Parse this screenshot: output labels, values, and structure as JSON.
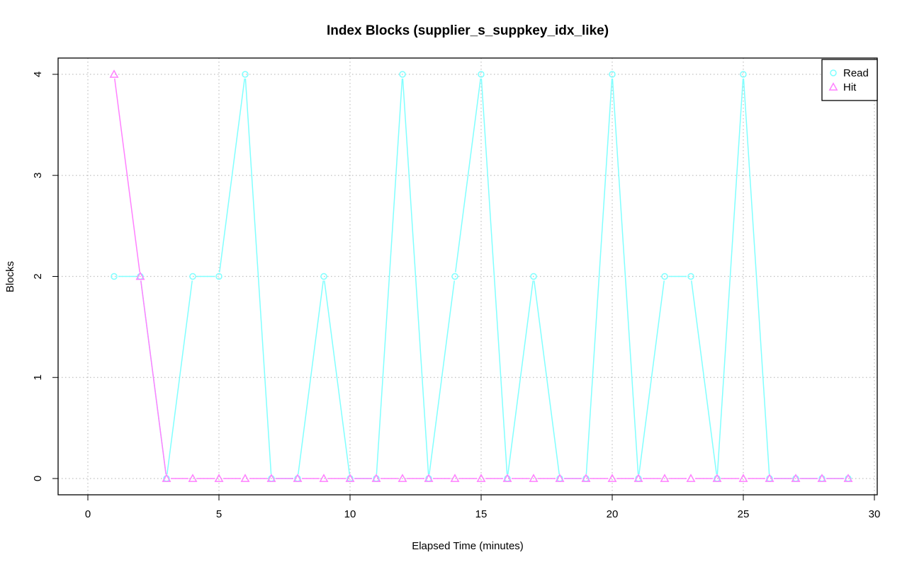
{
  "chart_data": {
    "type": "line",
    "title": "Index Blocks (supplier_s_suppkey_idx_like)",
    "xlabel": "Elapsed Time (minutes)",
    "ylabel": "Blocks",
    "xlim": [
      0,
      30
    ],
    "ylim": [
      0,
      4
    ],
    "x_ticks": [
      0,
      5,
      10,
      15,
      20,
      25,
      30
    ],
    "y_ticks": [
      0,
      1,
      2,
      3,
      4
    ],
    "grid": true,
    "legend_position": "top-right",
    "x": [
      1,
      2,
      3,
      4,
      5,
      6,
      7,
      8,
      9,
      10,
      11,
      12,
      13,
      14,
      15,
      16,
      17,
      18,
      19,
      20,
      21,
      22,
      23,
      24,
      25,
      26,
      27,
      28,
      29
    ],
    "series": [
      {
        "name": "Read",
        "color": "#80ffff",
        "marker": "circle",
        "values": [
          2,
          2,
          0,
          2,
          2,
          4,
          0,
          0,
          2,
          0,
          0,
          4,
          0,
          2,
          4,
          0,
          2,
          0,
          0,
          4,
          0,
          2,
          2,
          0,
          4,
          0,
          0,
          0,
          0
        ]
      },
      {
        "name": "Hit",
        "color": "#ff80ff",
        "marker": "triangle",
        "values": [
          4,
          2,
          0,
          0,
          0,
          0,
          0,
          0,
          0,
          0,
          0,
          0,
          0,
          0,
          0,
          0,
          0,
          0,
          0,
          0,
          0,
          0,
          0,
          0,
          0,
          0,
          0,
          0,
          0
        ]
      }
    ]
  }
}
